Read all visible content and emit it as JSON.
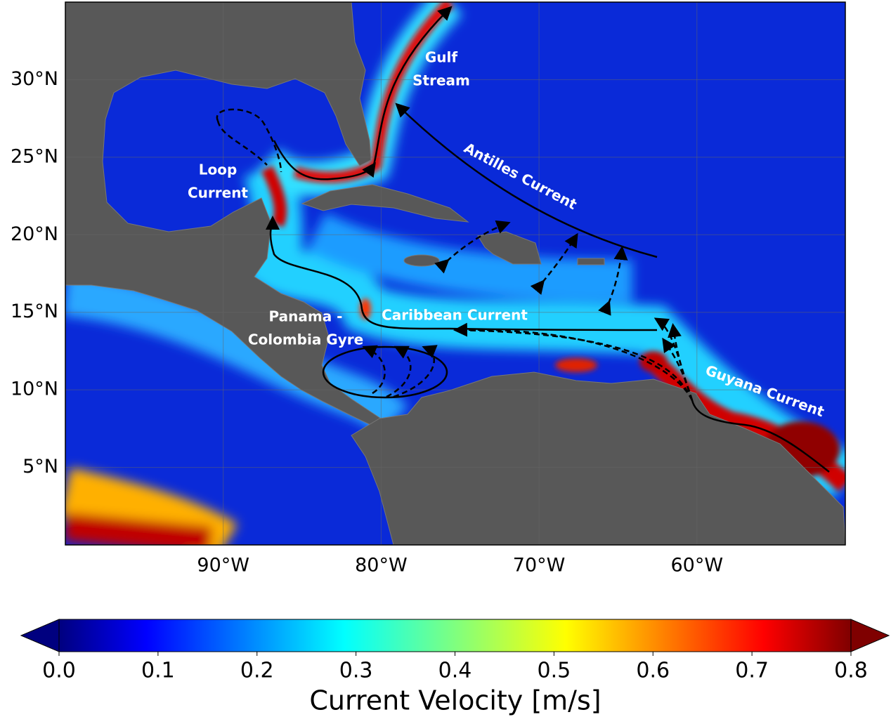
{
  "map": {
    "xlim": [
      -100,
      -50.6
    ],
    "ylim": [
      0,
      35
    ],
    "xticks": [
      {
        "value": -90,
        "label": "90°W"
      },
      {
        "value": -80,
        "label": "80°W"
      },
      {
        "value": -70,
        "label": "70°W"
      },
      {
        "value": -60,
        "label": "60°W"
      }
    ],
    "yticks": [
      {
        "value": 30,
        "label": "30°N"
      },
      {
        "value": 25,
        "label": "25°N"
      },
      {
        "value": 20,
        "label": "20°N"
      },
      {
        "value": 15,
        "label": "15°N"
      },
      {
        "value": 10,
        "label": "10°N"
      },
      {
        "value": 5,
        "label": "5°N"
      }
    ],
    "annotations": [
      {
        "lines": [
          "Gulf",
          "Stream"
        ]
      },
      {
        "lines": [
          "Loop",
          "Current"
        ]
      },
      {
        "lines": [
          "Antilles Current"
        ]
      },
      {
        "lines": [
          "Caribbean Current"
        ]
      },
      {
        "lines": [
          "Panama -",
          "Colombia Gyre"
        ]
      },
      {
        "lines": [
          "Guyana Current"
        ]
      }
    ]
  },
  "colorbar": {
    "clim": [
      0,
      0.8
    ],
    "ticks": [
      {
        "value": 0,
        "label": "0.0"
      },
      {
        "value": 0.1,
        "label": "0.1"
      },
      {
        "value": 0.2,
        "label": "0.2"
      },
      {
        "value": 0.3,
        "label": "0.3"
      },
      {
        "value": 0.4,
        "label": "0.4"
      },
      {
        "value": 0.5,
        "label": "0.5"
      },
      {
        "value": 0.6,
        "label": "0.6"
      },
      {
        "value": 0.7,
        "label": "0.7"
      },
      {
        "value": 0.8,
        "label": "0.8"
      }
    ],
    "label": "Current Velocity [m/s]"
  }
}
